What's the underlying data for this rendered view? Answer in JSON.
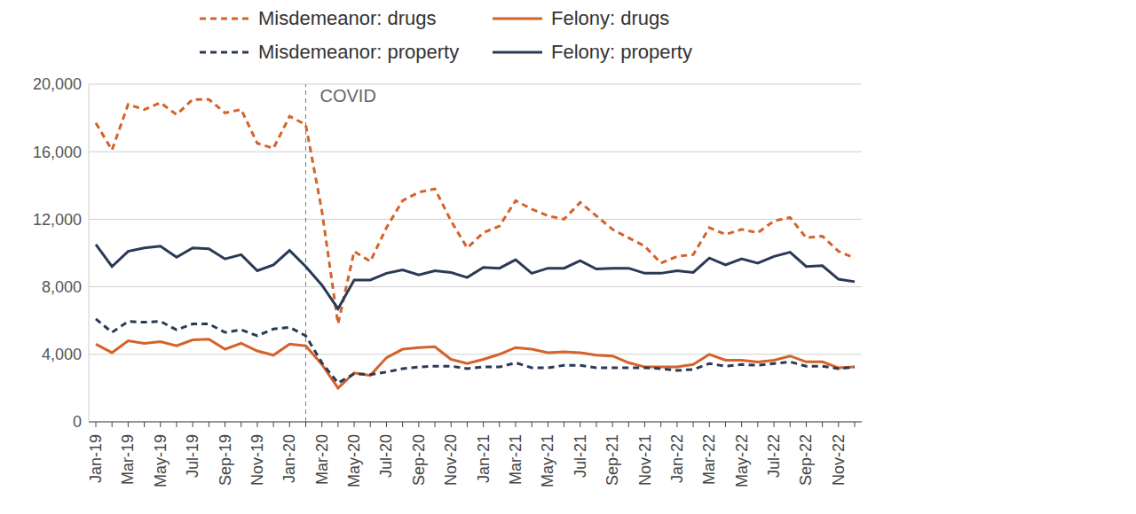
{
  "chart_data": {
    "type": "line",
    "categories": [
      "Jan-19",
      null,
      "Mar-19",
      null,
      "May-19",
      null,
      "Jul-19",
      null,
      "Sep-19",
      null,
      "Nov-19",
      null,
      "Jan-20",
      null,
      "Mar-20",
      null,
      "May-20",
      null,
      "Jul-20",
      null,
      "Sep-20",
      null,
      "Nov-20",
      null,
      "Jan-21",
      null,
      "Mar-21",
      null,
      "May-21",
      null,
      "Jul-21",
      null,
      "Sep-21",
      null,
      "Nov-21",
      null,
      "Jan-22",
      null,
      "Mar-22",
      null,
      "May-22",
      null,
      "Jul-22",
      null,
      "Sep-22",
      null,
      "Nov-22",
      null
    ],
    "series": [
      {
        "name": "Misdemeanor: drugs",
        "color": "#d4622a",
        "line_style": "dashed",
        "values": [
          17700,
          16100,
          18800,
          18500,
          18900,
          18200,
          19100,
          19100,
          18300,
          18500,
          16500,
          16200,
          18100,
          17600,
          12500,
          5800,
          10100,
          9500,
          11500,
          13100,
          13600,
          13800,
          11900,
          10300,
          11200,
          11600,
          13100,
          12600,
          12200,
          12000,
          13000,
          12200,
          11400,
          10900,
          10400,
          9400,
          9800,
          9900,
          11500,
          11100,
          11400,
          11200,
          11900,
          12100,
          10900,
          11000,
          10100,
          9700
        ]
      },
      {
        "name": "Felony: drugs",
        "color": "#d4622a",
        "line_style": "solid",
        "values": [
          4600,
          4100,
          4800,
          4650,
          4750,
          4500,
          4850,
          4900,
          4300,
          4650,
          4200,
          3950,
          4600,
          4500,
          3400,
          2000,
          2900,
          2750,
          3800,
          4300,
          4400,
          4450,
          3700,
          3450,
          3700,
          4000,
          4400,
          4300,
          4100,
          4150,
          4100,
          3950,
          3900,
          3500,
          3250,
          3250,
          3250,
          3400,
          4000,
          3650,
          3650,
          3550,
          3650,
          3900,
          3550,
          3550,
          3200,
          3250
        ]
      },
      {
        "name": "Misdemeanor: property",
        "color": "#2a3a55",
        "line_style": "dashed",
        "values": [
          6100,
          5300,
          5950,
          5900,
          5950,
          5450,
          5800,
          5800,
          5300,
          5450,
          5100,
          5500,
          5600,
          5100,
          3500,
          2300,
          2850,
          2800,
          2950,
          3150,
          3250,
          3300,
          3300,
          3150,
          3250,
          3250,
          3500,
          3200,
          3200,
          3350,
          3350,
          3200,
          3200,
          3200,
          3200,
          3150,
          3050,
          3100,
          3450,
          3300,
          3400,
          3350,
          3450,
          3550,
          3300,
          3300,
          3150,
          3250
        ]
      },
      {
        "name": "Felony: property",
        "color": "#2a3a55",
        "line_style": "solid",
        "values": [
          10500,
          9200,
          10100,
          10300,
          10400,
          9750,
          10300,
          10250,
          9650,
          9900,
          8950,
          9300,
          10150,
          9200,
          8100,
          6700,
          8400,
          8400,
          8800,
          9000,
          8700,
          8950,
          8850,
          8550,
          9150,
          9100,
          9600,
          8800,
          9100,
          9100,
          9550,
          9050,
          9100,
          9100,
          8800,
          8800,
          8950,
          8850,
          9700,
          9300,
          9650,
          9400,
          9800,
          10050,
          9200,
          9250,
          8450,
          8300
        ]
      }
    ],
    "ylim": [
      0,
      20000
    ],
    "yticks": [
      0,
      {
        "value": 4000,
        "label": "4,000"
      },
      {
        "value": 8000,
        "label": "8,000"
      },
      {
        "value": 12000,
        "label": "12,000"
      },
      {
        "value": 16000,
        "label": "16,000"
      },
      {
        "value": 20000,
        "label": "20,000"
      }
    ],
    "grid": true,
    "legend": "top",
    "annotations": [
      {
        "text": "COVID",
        "category_index": 13
      }
    ]
  }
}
